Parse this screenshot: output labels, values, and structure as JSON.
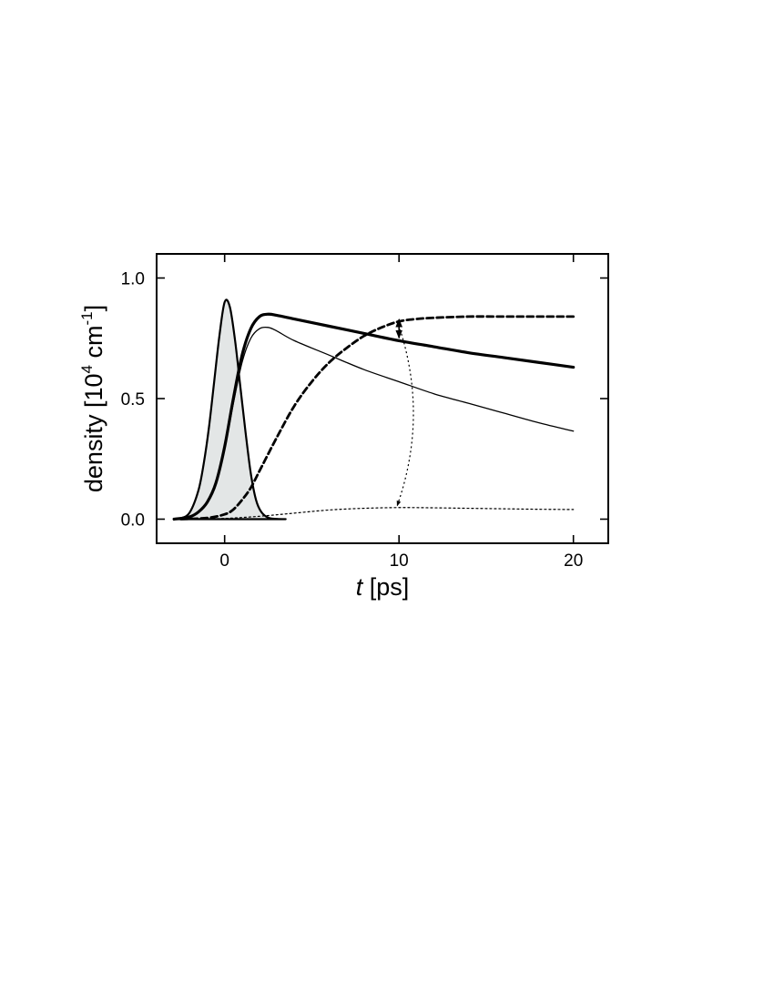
{
  "chart_data": {
    "type": "line",
    "xlabel": {
      "symbol": "t",
      "unit": " [ps]"
    },
    "ylabel": {
      "text": "density [10",
      "exp1": "4",
      "mid": " cm",
      "exp2": "-1",
      "end": "]"
    },
    "xlim": [
      -3.9,
      22
    ],
    "ylim": [
      -0.1,
      1.1
    ],
    "xticks": [
      0,
      10,
      20
    ],
    "xtick_labels": [
      "0",
      "10",
      "20"
    ],
    "yticks": [
      0.0,
      0.5,
      1.0
    ],
    "ytick_labels": [
      "0.0",
      "0.5",
      "1.0"
    ],
    "grid": false,
    "legend": "none",
    "series": [
      {
        "style": "filled-gray",
        "x": [
          -2.9,
          -2.5,
          -2.0,
          -1.5,
          -1.2,
          -0.9,
          -0.6,
          -0.3,
          0.0,
          0.3,
          0.6,
          0.9,
          1.2,
          1.5,
          1.8,
          2.1,
          2.5,
          3.0,
          3.5
        ],
        "y": [
          0.0,
          0.004,
          0.028,
          0.12,
          0.23,
          0.38,
          0.57,
          0.76,
          0.9,
          0.88,
          0.74,
          0.55,
          0.36,
          0.19,
          0.08,
          0.03,
          0.006,
          0.001,
          0.0
        ]
      },
      {
        "style": "thick-solid",
        "x": [
          -2.9,
          -2.0,
          -1.5,
          -1.0,
          -0.5,
          0.0,
          0.5,
          1.0,
          1.5,
          2.0,
          2.5,
          3.0,
          4.0,
          6.0,
          8.0,
          10.0,
          12.0,
          14.0,
          16.0,
          18.0,
          20.0
        ],
        "y": [
          0.0,
          0.01,
          0.03,
          0.07,
          0.15,
          0.3,
          0.5,
          0.68,
          0.79,
          0.84,
          0.85,
          0.845,
          0.83,
          0.8,
          0.77,
          0.74,
          0.715,
          0.69,
          0.67,
          0.65,
          0.63
        ]
      },
      {
        "style": "thin-solid",
        "x": [
          -2.9,
          -2.0,
          -1.5,
          -1.0,
          -0.5,
          0.0,
          0.5,
          1.0,
          1.5,
          2.0,
          2.5,
          3.0,
          4.0,
          6.0,
          8.0,
          10.0,
          12.0,
          14.0,
          16.0,
          18.0,
          20.0
        ],
        "y": [
          0.0,
          0.01,
          0.03,
          0.07,
          0.15,
          0.29,
          0.48,
          0.65,
          0.75,
          0.79,
          0.795,
          0.78,
          0.74,
          0.68,
          0.62,
          0.57,
          0.52,
          0.48,
          0.44,
          0.4,
          0.365
        ]
      },
      {
        "style": "thick-dashed",
        "x": [
          -2.5,
          -1.0,
          0.0,
          0.5,
          1.0,
          1.5,
          2.0,
          3.0,
          4.0,
          5.0,
          6.0,
          7.0,
          8.0,
          9.0,
          10.0,
          11.0,
          12.0,
          14.0,
          16.0,
          18.0,
          20.0
        ],
        "y": [
          0.0,
          0.005,
          0.02,
          0.04,
          0.08,
          0.13,
          0.2,
          0.34,
          0.47,
          0.57,
          0.65,
          0.71,
          0.76,
          0.795,
          0.82,
          0.83,
          0.835,
          0.84,
          0.84,
          0.84,
          0.84
        ]
      },
      {
        "style": "thin-dotted",
        "x": [
          -2.0,
          0.0,
          2.0,
          4.0,
          6.0,
          8.0,
          10.0,
          12.0,
          14.0,
          16.0,
          18.0,
          20.0
        ],
        "y": [
          0.0,
          0.003,
          0.012,
          0.025,
          0.038,
          0.045,
          0.048,
          0.047,
          0.045,
          0.043,
          0.041,
          0.04
        ]
      }
    ],
    "annotations": [
      {
        "type": "double-arrow",
        "style": "solid",
        "x": 10,
        "y_from": 0.74,
        "y_to": 0.84
      },
      {
        "type": "curved-double-arrow",
        "style": "dotted",
        "x": 10,
        "y_from": 0.83,
        "y_to": 0.048,
        "bulge_x": 10.9
      }
    ]
  }
}
